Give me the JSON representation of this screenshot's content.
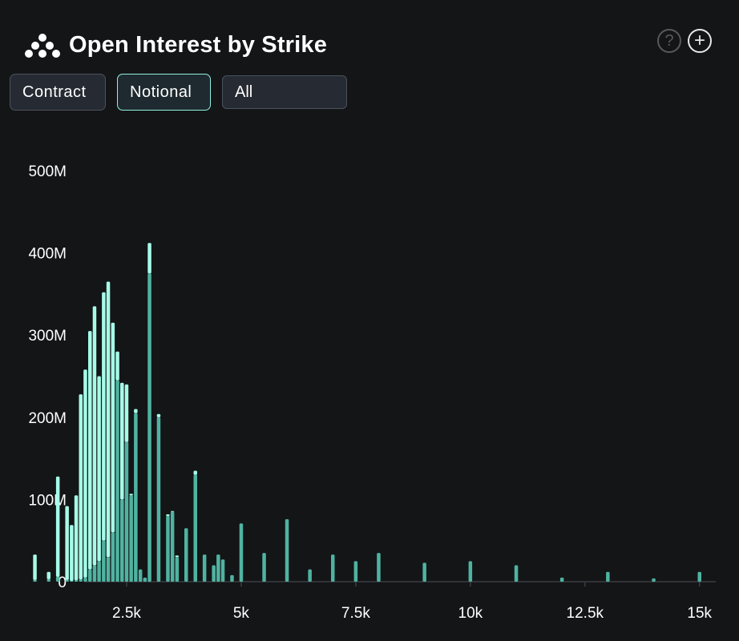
{
  "header": {
    "title": "Open Interest by Strike",
    "help_icon": "question-circle-icon",
    "add_icon": "plus-circle-icon",
    "logo_icon": "dots-logo-icon"
  },
  "controls": {
    "contract_label": "Contract",
    "notional_label": "Notional",
    "selected": "Notional",
    "filter_value": "All"
  },
  "colors": {
    "background": "#141517",
    "light_series": "#a6fbe8",
    "dark_series": "#4fb3a1",
    "axis": "#3a3d42"
  },
  "chart_data": {
    "type": "bar",
    "stacked": true,
    "title": "",
    "xlabel": "",
    "ylabel": "",
    "xlim": [
      0,
      15200
    ],
    "ylim": [
      0,
      500000000
    ],
    "x_ticks": [
      2500,
      5000,
      7500,
      10000,
      12500,
      15000
    ],
    "x_tick_labels": [
      "2.5k",
      "5k",
      "7.5k",
      "10k",
      "12.5k",
      "15k"
    ],
    "y_ticks": [
      0,
      100000000,
      200000000,
      300000000,
      400000000,
      500000000
    ],
    "y_tick_labels": [
      "0",
      "100M",
      "200M",
      "300M",
      "400M",
      "500M"
    ],
    "grid": false,
    "legend": "none",
    "series": [
      {
        "color": "#4fb3a1",
        "x": [
          500,
          800,
          1000,
          1200,
          1300,
          1400,
          1500,
          1600,
          1700,
          1800,
          1900,
          2000,
          2100,
          2200,
          2300,
          2400,
          2500,
          2600,
          2700,
          2800,
          2900,
          3000,
          3200,
          3400,
          3500,
          3600,
          3800,
          4000,
          4200,
          4400,
          4500,
          4600,
          4800,
          5000,
          5500,
          6000,
          6500,
          7000,
          7500,
          8000,
          9000,
          10000,
          11000,
          12000,
          13000,
          14000,
          15000
        ],
        "values": [
          2000000,
          3000000,
          6000000,
          2000000,
          1000000,
          2000000,
          3000000,
          5000000,
          15000000,
          20000000,
          25000000,
          50000000,
          30000000,
          60000000,
          245000000,
          100000000,
          170000000,
          105000000,
          205000000,
          15000000,
          5000000,
          375000000,
          200000000,
          80000000,
          85000000,
          30000000,
          65000000,
          130000000,
          33000000,
          20000000,
          33000000,
          27000000,
          8000000,
          71000000,
          35000000,
          76000000,
          15000000,
          33000000,
          25000000,
          35000000,
          23000000,
          25000000,
          20000000,
          5000000,
          12000000,
          4000000,
          12000000
        ]
      },
      {
        "color": "#a6fbe8",
        "x": [
          500,
          800,
          1000,
          1200,
          1300,
          1400,
          1500,
          1600,
          1700,
          1800,
          1900,
          2000,
          2100,
          2200,
          2300,
          2400,
          2500,
          2600,
          2700,
          2800,
          2900,
          3000,
          3200,
          3400,
          3500,
          3600,
          3800,
          4000,
          4200,
          4400,
          4500,
          4600,
          4800,
          5000,
          5500,
          6000,
          6500,
          7000,
          7500,
          8000,
          9000,
          10000,
          11000,
          12000,
          13000,
          14000,
          15000
        ],
        "values": [
          31000000,
          9000000,
          122000000,
          90000000,
          68000000,
          103000000,
          225000000,
          253000000,
          290000000,
          315000000,
          225000000,
          302000000,
          335000000,
          255000000,
          35000000,
          142000000,
          70000000,
          2000000,
          5000000,
          0,
          0,
          37000000,
          4000000,
          2000000,
          1000000,
          2000000,
          0,
          5000000,
          0,
          0,
          0,
          0,
          0,
          0,
          0,
          0,
          0,
          0,
          0,
          0,
          0,
          0,
          0,
          0,
          0,
          0,
          0
        ]
      }
    ]
  }
}
